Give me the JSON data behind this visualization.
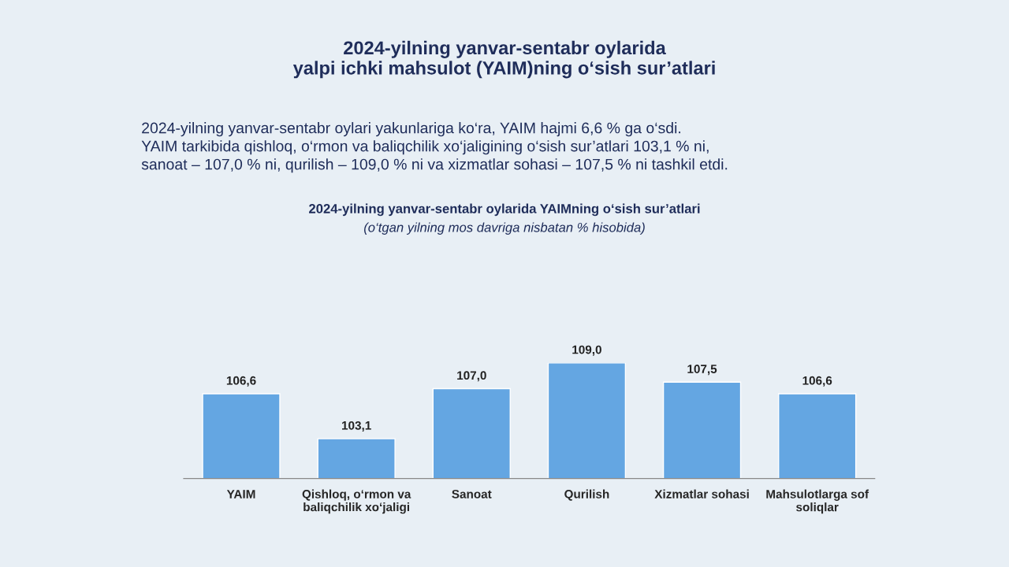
{
  "chart_data": {
    "type": "bar",
    "title": "2024-yilning yanvar-sentabr oylarida\nyalpi ichki mahsulot (YAIM)ning o‘sish sur’atlari",
    "subtitle": "2024-yilning yanvar-sentabr oylarida YAIMning o‘sish sur’atlari",
    "annotations": [
      "2024-yilning yanvar-sentabr oylari yakunlariga ko‘ra, YAIM hajmi 6,6 % ga o‘sdi.\nYAIM tarkibida qishloq, o‘rmon va baliqchilik xo‘jaligining o‘sish sur’atlari 103,1 % ni,\nsanoat – 107,0 % ni, qurilish – 109,0 % ni va xizmatlar sohasi – 107,5 % ni tashkil etdi.",
      "(o‘tgan yilning mos davriga nisbatan % hisobida)"
    ],
    "categories": [
      "YAIM",
      "Qishloq, o‘rmon va\nbaliqchilik xo‘jaligi",
      "Sanoat",
      "Qurilish",
      "Xizmatlar sohasi",
      "Mahsulotlarga sof\nsoliqlar"
    ],
    "values": [
      106.6,
      103.1,
      107.0,
      109.0,
      107.5,
      106.6
    ],
    "value_labels": [
      "106,6",
      "103,1",
      "107,0",
      "109,0",
      "107,5",
      "106,6"
    ],
    "color": "#64a6e2",
    "tick_labels": "x"
  }
}
